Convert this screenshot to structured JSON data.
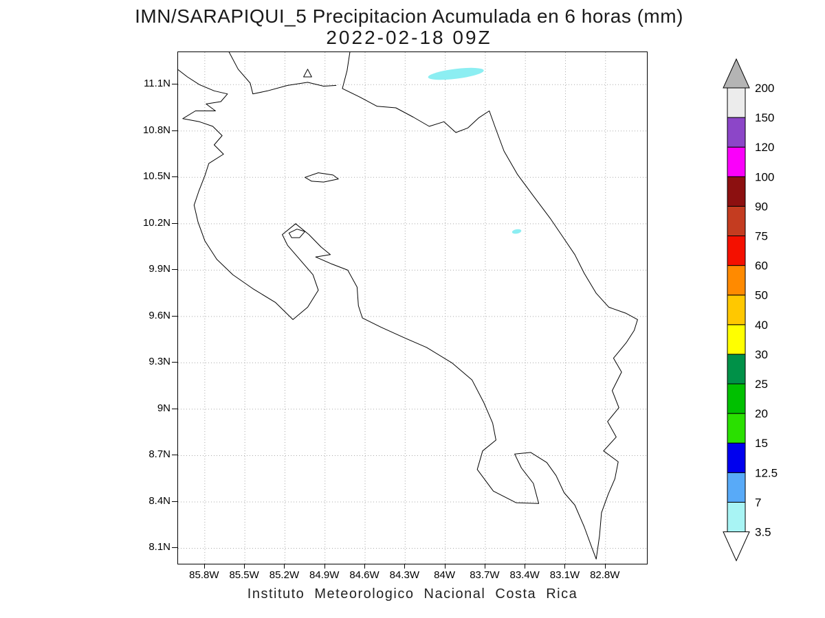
{
  "title": {
    "line1": "IMN/SARAPIQUI_5 Precipitacion Acumulada en 6 horas (mm)",
    "line2": "2022-02-18 09Z"
  },
  "caption": "Instituto Meteorologico Nacional Costa Rica",
  "map": {
    "extent": {
      "lon_min": -86.0,
      "lon_max": -82.49,
      "lat_min": 8.0,
      "lat_max": 11.31
    },
    "lat_ticks": [
      {
        "label": "11.1N",
        "value": 11.1
      },
      {
        "label": "10.8N",
        "value": 10.8
      },
      {
        "label": "10.5N",
        "value": 10.5
      },
      {
        "label": "10.2N",
        "value": 10.2
      },
      {
        "label": "9.9N",
        "value": 9.9
      },
      {
        "label": "9.6N",
        "value": 9.6
      },
      {
        "label": "9.3N",
        "value": 9.3
      },
      {
        "label": "9N",
        "value": 9.0
      },
      {
        "label": "8.7N",
        "value": 8.7
      },
      {
        "label": "8.4N",
        "value": 8.4
      },
      {
        "label": "8.1N",
        "value": 8.1
      }
    ],
    "lon_ticks": [
      {
        "label": "85.8W",
        "value": -85.8
      },
      {
        "label": "85.5W",
        "value": -85.5
      },
      {
        "label": "85.2W",
        "value": -85.2
      },
      {
        "label": "84.9W",
        "value": -84.9
      },
      {
        "label": "84.6W",
        "value": -84.6
      },
      {
        "label": "84.3W",
        "value": -84.3
      },
      {
        "label": "84W",
        "value": -84.0
      },
      {
        "label": "83.7W",
        "value": -83.7
      },
      {
        "label": "83.4W",
        "value": -83.4
      },
      {
        "label": "83.1W",
        "value": -83.1
      },
      {
        "label": "82.8W",
        "value": -82.8
      }
    ],
    "grid_color": "#a8a8a8",
    "coastline_color": "#000000",
    "precip_color": "#8ceef2",
    "precipitation_patches": [
      {
        "lon": -83.92,
        "lat": 11.17,
        "rx_deg": 0.21,
        "ry_deg": 0.032,
        "rotation_deg": -7,
        "value_range_mm": "3.5-7"
      },
      {
        "lon": -83.465,
        "lat": 10.15,
        "rx_deg": 0.035,
        "ry_deg": 0.014,
        "rotation_deg": -10,
        "value_range_mm": "3.5-7"
      }
    ]
  },
  "colorbar": {
    "levels": [
      "3.5",
      "7",
      "12.5",
      "15",
      "20",
      "25",
      "30",
      "40",
      "50",
      "60",
      "75",
      "90",
      "100",
      "120",
      "150",
      "200"
    ],
    "colors_bottom_to_top": [
      "#a8f4f4",
      "#58aaf8",
      "#0000ee",
      "#2ae000",
      "#00c000",
      "#009148",
      "#ffff00",
      "#ffc800",
      "#ff8a00",
      "#f41000",
      "#c43c20",
      "#8c1010",
      "#fa00fa",
      "#8c46c8",
      "#ececec"
    ],
    "under_color": "#ffffff",
    "over_color": "#b4b4b4",
    "units": "mm"
  },
  "chart_data": {
    "type": "heatmap",
    "title": "IMN/SARAPIQUI_5 Precipitacion Acumulada en 6 horas (mm)",
    "subtitle": "2022-02-18 09Z",
    "units": "mm",
    "region": "Costa Rica",
    "x_axis_ticks": [
      "85.8W",
      "85.5W",
      "85.2W",
      "84.9W",
      "84.6W",
      "84.3W",
      "84W",
      "83.7W",
      "83.4W",
      "83.1W",
      "82.8W"
    ],
    "y_axis_ticks": [
      "11.1N",
      "10.8N",
      "10.5N",
      "10.2N",
      "9.9N",
      "9.6N",
      "9.3N",
      "9N",
      "8.7N",
      "8.4N",
      "8.1N"
    ],
    "legend_levels": [
      3.5,
      7,
      12.5,
      15,
      20,
      25,
      30,
      40,
      50,
      60,
      75,
      90,
      100,
      120,
      150,
      200
    ],
    "data_points": [
      {
        "lon": -83.92,
        "lat": 11.17,
        "precip_mm_range": "3.5-7",
        "shape": "elongated-streak"
      },
      {
        "lon": -83.47,
        "lat": 10.15,
        "precip_mm_range": "3.5-7",
        "shape": "small-spot"
      }
    ],
    "source_caption": "Instituto Meteorologico Nacional Costa Rica"
  }
}
